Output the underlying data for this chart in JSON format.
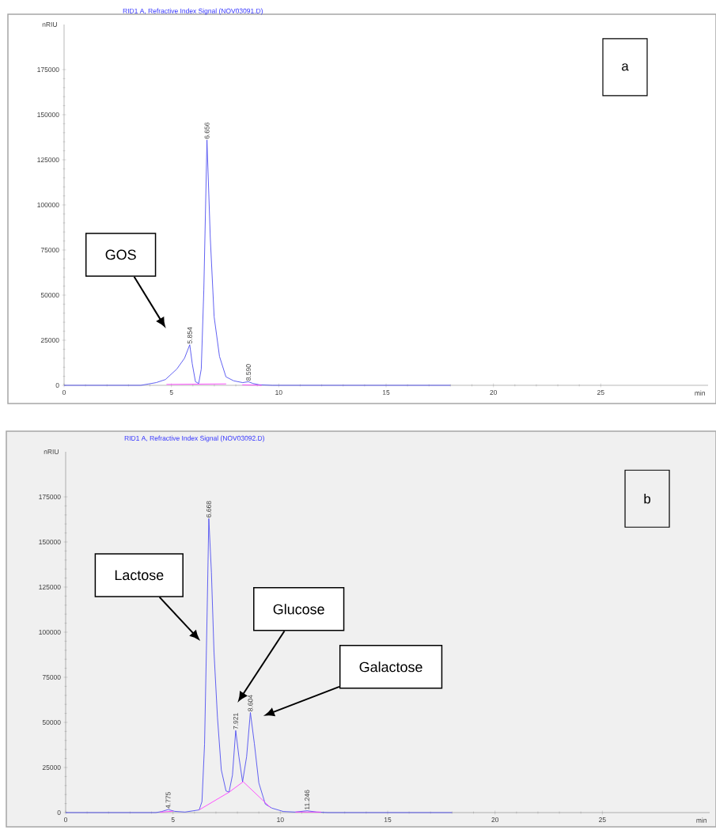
{
  "chart_data": [
    {
      "type": "line",
      "title": "RID1 A, Refractive Index Signal (NOV03091.D)",
      "xlabel": "min",
      "ylabel": "nRIU",
      "xlim": [
        0,
        30
      ],
      "ylim": [
        0,
        200000
      ],
      "xticks": [
        0,
        5,
        10,
        15,
        20,
        25
      ],
      "yticks": [
        0,
        25000,
        50000,
        75000,
        100000,
        125000,
        150000,
        175000
      ],
      "series": [
        {
          "color": "#5050f0",
          "x": [
            0,
            3.57,
            4.29,
            4.72,
            5.25,
            5.61,
            5.854,
            5.97,
            6.12,
            6.27,
            6.39,
            6.51,
            6.656,
            6.81,
            6.99,
            7.24,
            7.54,
            7.9,
            8.32,
            8.59,
            8.8,
            9.1,
            9.7,
            18
          ],
          "values": [
            0,
            0,
            1500,
            3200,
            9000,
            15000,
            22500,
            12000,
            2000,
            1000,
            9000,
            53000,
            136000,
            82000,
            38000,
            16000,
            4700,
            2500,
            1500,
            2000,
            1000,
            300,
            0,
            0
          ]
        },
        {
          "color": "#ff40ff",
          "x": [
            4.77,
            7.55,
            7.6,
            8.3,
            9.2
          ],
          "values": [
            500,
            800,
            null,
            300,
            0
          ]
        }
      ],
      "annotations": [
        "a",
        "GOS",
        {
          "text": "5.854",
          "x": 5.854,
          "y": 22500
        },
        {
          "text": "6.656",
          "x": 6.656,
          "y": 136000
        },
        {
          "text": "8.590",
          "x": 8.59,
          "y": 2000
        }
      ]
    },
    {
      "type": "line",
      "title": "RID1 A, Refractive Index Signal (NOV03092.D)",
      "xlabel": "min",
      "ylabel": "nRIU",
      "xlim": [
        0,
        30
      ],
      "ylim": [
        0,
        200000
      ],
      "xticks": [
        0,
        5,
        10,
        15,
        20,
        25
      ],
      "yticks": [
        0,
        25000,
        50000,
        75000,
        100000,
        125000,
        150000,
        175000
      ],
      "series": [
        {
          "color": "#5050f0",
          "x": [
            0,
            4.2,
            4.48,
            4.775,
            5.08,
            5.56,
            6.22,
            6.35,
            6.47,
            6.59,
            6.668,
            6.79,
            6.91,
            7.07,
            7.25,
            7.47,
            7.61,
            7.77,
            7.921,
            8.07,
            8.24,
            8.43,
            8.604,
            8.79,
            9.0,
            9.3,
            9.6,
            10.14,
            10.69,
            11.246,
            11.7,
            12.2,
            18
          ],
          "values": [
            0,
            0,
            600,
            1700,
            700,
            300,
            1500,
            6100,
            38000,
            111000,
            163000,
            133000,
            89000,
            53000,
            23700,
            12000,
            11300,
            20800,
            45500,
            31000,
            17100,
            31000,
            55500,
            38300,
            16400,
            4700,
            2500,
            600,
            300,
            1000,
            300,
            0,
            0
          ]
        },
        {
          "color": "#ff40ff",
          "x": [
            4.4,
            5.0,
            5.1,
            6.22,
            7.61,
            8.27,
            9.54,
            9.6,
            10.7,
            11.9
          ],
          "values": [
            200,
            800,
            null,
            1500,
            11300,
            17100,
            2800,
            null,
            300,
            300
          ]
        }
      ],
      "annotations": [
        "b",
        "Lactose",
        "Glucose",
        "Galactose",
        {
          "text": "4.775",
          "x": 4.775,
          "y": 1700
        },
        {
          "text": "6.668",
          "x": 6.668,
          "y": 163000
        },
        {
          "text": "7.921",
          "x": 7.921,
          "y": 45500
        },
        {
          "text": "8.604",
          "x": 8.604,
          "y": 55500
        },
        {
          "text": "11.246",
          "x": 11.246,
          "y": 1000
        }
      ]
    }
  ]
}
